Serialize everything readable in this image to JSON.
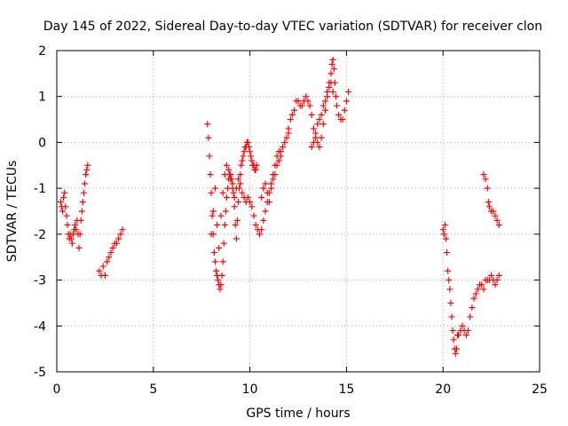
{
  "chart_data": {
    "type": "scatter",
    "title": "Day 145 of 2022, Sidereal Day-to-day VTEC variation (SDTVAR) for receiver clon",
    "xlabel": "GPS time / hours",
    "ylabel": "SDTVAR / TECUs",
    "xlim": [
      0,
      25
    ],
    "ylim": [
      -5,
      2
    ],
    "x_ticks": [
      0,
      5,
      10,
      15,
      20,
      25
    ],
    "y_ticks": [
      -5,
      -4,
      -3,
      -2,
      -1,
      0,
      1,
      2
    ],
    "x_tick_labels": [
      "0",
      "5",
      "10",
      "15",
      "20",
      "25"
    ],
    "y_tick_labels": [
      "-5",
      "-4",
      "-3",
      "-2",
      "-1",
      "0",
      "1",
      "2"
    ],
    "grid": true,
    "marker": "+",
    "series": [
      {
        "name": "SDTVAR",
        "color": "#ff0000",
        "points": [
          [
            0.2,
            -1.3
          ],
          [
            0.25,
            -1.4
          ],
          [
            0.3,
            -1.5
          ],
          [
            0.35,
            -1.2
          ],
          [
            0.4,
            -1.1
          ],
          [
            0.45,
            -1.4
          ],
          [
            0.5,
            -1.6
          ],
          [
            0.55,
            -1.8
          ],
          [
            0.6,
            -2.0
          ],
          [
            0.65,
            -2.1
          ],
          [
            0.7,
            -2.0
          ],
          [
            0.75,
            -2.1
          ],
          [
            0.8,
            -2.2
          ],
          [
            0.85,
            -2.0
          ],
          [
            0.9,
            -1.9
          ],
          [
            0.95,
            -1.8
          ],
          [
            1.0,
            -1.9
          ],
          [
            1.05,
            -1.7
          ],
          [
            1.1,
            -2.0
          ],
          [
            1.15,
            -2.3
          ],
          [
            1.2,
            -2.0
          ],
          [
            1.25,
            -1.7
          ],
          [
            1.3,
            -1.5
          ],
          [
            1.35,
            -1.3
          ],
          [
            1.4,
            -1.1
          ],
          [
            1.45,
            -0.9
          ],
          [
            1.5,
            -0.7
          ],
          [
            1.55,
            -0.6
          ],
          [
            1.6,
            -0.5
          ],
          [
            2.2,
            -2.8
          ],
          [
            2.3,
            -2.9
          ],
          [
            2.4,
            -2.7
          ],
          [
            2.5,
            -2.9
          ],
          [
            2.6,
            -2.6
          ],
          [
            2.7,
            -2.5
          ],
          [
            2.8,
            -2.4
          ],
          [
            2.9,
            -2.3
          ],
          [
            3.0,
            -2.2
          ],
          [
            3.1,
            -2.2
          ],
          [
            3.2,
            -2.1
          ],
          [
            3.3,
            -2.0
          ],
          [
            3.4,
            -1.9
          ],
          [
            7.8,
            0.4
          ],
          [
            7.85,
            0.1
          ],
          [
            7.9,
            -0.3
          ],
          [
            7.95,
            -0.7
          ],
          [
            8.0,
            -1.1
          ],
          [
            8.05,
            -1.6
          ],
          [
            8.1,
            -2.0
          ],
          [
            8.15,
            -2.4
          ],
          [
            8.2,
            -2.6
          ],
          [
            8.25,
            -2.8
          ],
          [
            8.3,
            -2.9
          ],
          [
            8.35,
            -3.0
          ],
          [
            8.4,
            -3.1
          ],
          [
            8.45,
            -3.2
          ],
          [
            8.5,
            -3.1
          ],
          [
            8.55,
            -2.9
          ],
          [
            8.6,
            -2.6
          ],
          [
            8.65,
            -2.2
          ],
          [
            8.7,
            -1.8
          ],
          [
            8.75,
            -1.5
          ],
          [
            8.8,
            -1.2
          ],
          [
            8.85,
            -1.0
          ],
          [
            8.9,
            -0.8
          ],
          [
            8.95,
            -0.7
          ],
          [
            9.0,
            -0.7
          ],
          [
            9.05,
            -0.8
          ],
          [
            9.1,
            -0.9
          ],
          [
            9.15,
            -1.1
          ],
          [
            9.2,
            -1.4
          ],
          [
            9.25,
            -1.8
          ],
          [
            9.3,
            -2.1
          ],
          [
            9.35,
            -1.7
          ],
          [
            9.4,
            -1.3
          ],
          [
            9.45,
            -1.0
          ],
          [
            9.5,
            -0.7
          ],
          [
            9.55,
            -0.5
          ],
          [
            9.6,
            -0.4
          ],
          [
            9.65,
            -0.3
          ],
          [
            9.7,
            -0.2
          ],
          [
            9.75,
            -0.1
          ],
          [
            9.8,
            -0.1
          ],
          [
            9.85,
            0.0
          ],
          [
            9.9,
            0.0
          ],
          [
            9.95,
            -0.1
          ],
          [
            10.0,
            -0.2
          ],
          [
            10.05,
            -0.3
          ],
          [
            10.1,
            -0.4
          ],
          [
            10.15,
            -0.5
          ],
          [
            10.2,
            -0.5
          ],
          [
            10.25,
            -0.6
          ],
          [
            10.3,
            -0.6
          ],
          [
            10.35,
            -0.5
          ],
          [
            8.0,
            -2.0
          ],
          [
            8.1,
            -1.5
          ],
          [
            8.2,
            -1.0
          ],
          [
            8.3,
            -1.8
          ],
          [
            8.4,
            -2.3
          ],
          [
            8.5,
            -1.6
          ],
          [
            8.6,
            -1.1
          ],
          [
            8.7,
            -0.7
          ],
          [
            8.8,
            -0.5
          ],
          [
            8.9,
            -0.6
          ],
          [
            9.0,
            -0.8
          ],
          [
            9.1,
            -1.0
          ],
          [
            9.2,
            -1.2
          ],
          [
            9.3,
            -1.0
          ],
          [
            9.4,
            -0.8
          ],
          [
            9.5,
            -0.9
          ],
          [
            9.6,
            -1.1
          ],
          [
            9.7,
            -1.2
          ],
          [
            9.8,
            -1.3
          ],
          [
            9.9,
            -1.2
          ],
          [
            10.0,
            -1.3
          ],
          [
            10.1,
            -1.4
          ],
          [
            10.2,
            -1.6
          ],
          [
            10.3,
            -1.8
          ],
          [
            10.4,
            -1.9
          ],
          [
            10.5,
            -2.0
          ],
          [
            10.6,
            -1.9
          ],
          [
            10.7,
            -1.7
          ],
          [
            10.8,
            -1.5
          ],
          [
            10.9,
            -1.3
          ],
          [
            11.0,
            -1.1
          ],
          [
            11.1,
            -0.9
          ],
          [
            11.2,
            -0.7
          ],
          [
            11.3,
            -0.5
          ],
          [
            11.4,
            -0.3
          ],
          [
            11.5,
            -0.2
          ],
          [
            11.6,
            -0.2
          ],
          [
            11.7,
            -0.1
          ],
          [
            11.8,
            0.0
          ],
          [
            11.9,
            0.1
          ],
          [
            12.0,
            0.2
          ],
          [
            10.6,
            -1.2
          ],
          [
            10.7,
            -1.0
          ],
          [
            10.8,
            -0.9
          ],
          [
            10.9,
            -1.1
          ],
          [
            11.0,
            -1.3
          ],
          [
            11.1,
            -1.0
          ],
          [
            11.2,
            -0.8
          ],
          [
            11.3,
            -0.7
          ],
          [
            11.4,
            -0.5
          ],
          [
            11.5,
            -0.4
          ],
          [
            11.6,
            -0.3
          ],
          [
            12.0,
            0.3
          ],
          [
            12.1,
            0.5
          ],
          [
            12.2,
            0.6
          ],
          [
            12.3,
            0.7
          ],
          [
            12.4,
            0.9
          ],
          [
            12.5,
            0.9
          ],
          [
            12.6,
            0.8
          ],
          [
            12.7,
            0.8
          ],
          [
            12.8,
            0.9
          ],
          [
            12.9,
            1.0
          ],
          [
            13.0,
            0.9
          ],
          [
            13.1,
            0.8
          ],
          [
            13.2,
            0.6
          ],
          [
            13.3,
            0.3
          ],
          [
            13.4,
            0.1
          ],
          [
            13.5,
            0.0
          ],
          [
            13.6,
            -0.1
          ],
          [
            13.7,
            0.1
          ],
          [
            13.8,
            0.4
          ],
          [
            13.9,
            0.7
          ],
          [
            14.0,
            1.0
          ],
          [
            14.1,
            1.3
          ],
          [
            14.2,
            1.5
          ],
          [
            14.25,
            1.7
          ],
          [
            14.3,
            1.8
          ],
          [
            14.35,
            1.6
          ],
          [
            14.4,
            1.3
          ],
          [
            14.45,
            1.0
          ],
          [
            14.5,
            0.8
          ],
          [
            14.6,
            0.6
          ],
          [
            14.7,
            0.5
          ],
          [
            14.8,
            0.5
          ],
          [
            14.9,
            0.7
          ],
          [
            15.0,
            0.9
          ],
          [
            15.1,
            1.1
          ],
          [
            13.2,
            -0.1
          ],
          [
            13.3,
            0.0
          ],
          [
            13.4,
            0.2
          ],
          [
            13.5,
            0.4
          ],
          [
            13.6,
            0.5
          ],
          [
            13.7,
            0.6
          ],
          [
            13.8,
            0.8
          ],
          [
            13.9,
            0.9
          ],
          [
            14.0,
            1.1
          ],
          [
            14.1,
            1.2
          ],
          [
            14.2,
            1.3
          ],
          [
            14.3,
            1.1
          ],
          [
            20.0,
            -1.9
          ],
          [
            20.05,
            -2.0
          ],
          [
            20.1,
            -1.8
          ],
          [
            20.15,
            -2.1
          ],
          [
            20.2,
            -2.4
          ],
          [
            20.25,
            -2.8
          ],
          [
            20.3,
            -3.0
          ],
          [
            20.35,
            -3.2
          ],
          [
            20.4,
            -3.5
          ],
          [
            20.45,
            -3.8
          ],
          [
            20.5,
            -4.1
          ],
          [
            20.55,
            -4.3
          ],
          [
            20.6,
            -4.5
          ],
          [
            20.65,
            -4.6
          ],
          [
            20.7,
            -4.5
          ],
          [
            20.75,
            -4.2
          ],
          [
            20.8,
            -4.2
          ],
          [
            20.9,
            -4.1
          ],
          [
            21.0,
            -4.0
          ],
          [
            21.1,
            -4.1
          ],
          [
            21.2,
            -4.2
          ],
          [
            21.3,
            -4.1
          ],
          [
            21.4,
            -3.8
          ],
          [
            21.5,
            -3.6
          ],
          [
            21.6,
            -3.4
          ],
          [
            21.7,
            -3.3
          ],
          [
            21.8,
            -3.2
          ],
          [
            21.9,
            -3.1
          ],
          [
            22.0,
            -3.1
          ],
          [
            22.1,
            -3.2
          ],
          [
            22.2,
            -3.0
          ],
          [
            22.3,
            -3.0
          ],
          [
            22.4,
            -3.0
          ],
          [
            22.5,
            -2.9
          ],
          [
            22.6,
            -3.0
          ],
          [
            22.7,
            -3.1
          ],
          [
            22.8,
            -3.0
          ],
          [
            22.9,
            -2.9
          ],
          [
            22.1,
            -0.7
          ],
          [
            22.2,
            -0.8
          ],
          [
            22.3,
            -1.0
          ],
          [
            22.35,
            -1.3
          ],
          [
            22.4,
            -1.4
          ],
          [
            22.5,
            -1.5
          ],
          [
            22.6,
            -1.5
          ],
          [
            22.7,
            -1.6
          ],
          [
            22.8,
            -1.7
          ],
          [
            22.9,
            -1.8
          ]
        ]
      }
    ]
  }
}
